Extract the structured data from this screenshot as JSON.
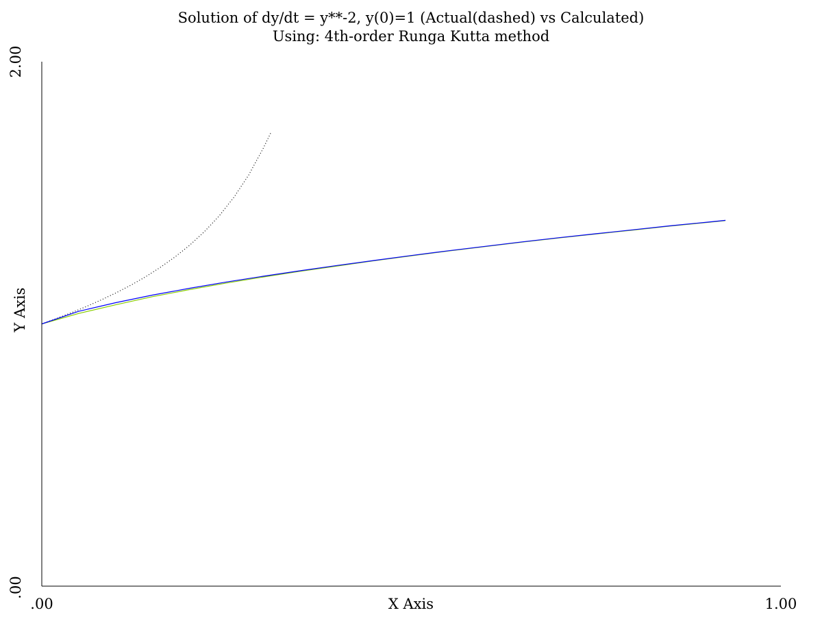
{
  "chart_data": {
    "type": "line",
    "title": "Solution of dy/dt = y**-2, y(0)=1 (Actual(dashed) vs Calculated)",
    "subtitle": "Using: 4th-order Runga Kutta method",
    "xlabel": "X Axis",
    "ylabel": "Y Axis",
    "xlim": [
      0.0,
      1.0
    ],
    "ylim": [
      0.0,
      2.0
    ],
    "x_tick_labels": [
      ".00",
      "1.00"
    ],
    "y_tick_labels": [
      ".00",
      "2.00"
    ],
    "grid": false,
    "series": [
      {
        "style": "dotted",
        "color": "#000000",
        "x": [
          0.0,
          0.02,
          0.04,
          0.06,
          0.08,
          0.1,
          0.12,
          0.14,
          0.16,
          0.18,
          0.2,
          0.22,
          0.24,
          0.26,
          0.28,
          0.3,
          0.31
        ],
        "y": [
          1.0,
          1.021,
          1.043,
          1.066,
          1.091,
          1.118,
          1.147,
          1.179,
          1.215,
          1.255,
          1.3,
          1.352,
          1.412,
          1.483,
          1.568,
          1.672,
          1.73
        ]
      },
      {
        "style": "solid",
        "color": "#88cc00",
        "x": [
          0.0,
          0.05,
          0.1,
          0.15,
          0.2,
          0.25,
          0.3,
          0.35,
          0.4,
          0.45,
          0.5,
          0.55,
          0.6,
          0.65,
          0.7,
          0.75,
          0.8,
          0.85,
          0.9,
          0.925
        ],
        "y": [
          1.0,
          1.04,
          1.073,
          1.104,
          1.131,
          1.156,
          1.179,
          1.201,
          1.221,
          1.241,
          1.26,
          1.278,
          1.295,
          1.312,
          1.328,
          1.343,
          1.358,
          1.373,
          1.387,
          1.394
        ]
      },
      {
        "style": "solid",
        "color": "#0000ff",
        "x": [
          0.0,
          0.05,
          0.1,
          0.15,
          0.2,
          0.25,
          0.3,
          0.35,
          0.4,
          0.45,
          0.5,
          0.55,
          0.6,
          0.65,
          0.7,
          0.75,
          0.8,
          0.85,
          0.9,
          0.925
        ],
        "y": [
          1.0,
          1.048,
          1.081,
          1.11,
          1.136,
          1.16,
          1.182,
          1.203,
          1.223,
          1.242,
          1.261,
          1.279,
          1.296,
          1.313,
          1.329,
          1.344,
          1.359,
          1.374,
          1.388,
          1.395
        ]
      }
    ]
  }
}
